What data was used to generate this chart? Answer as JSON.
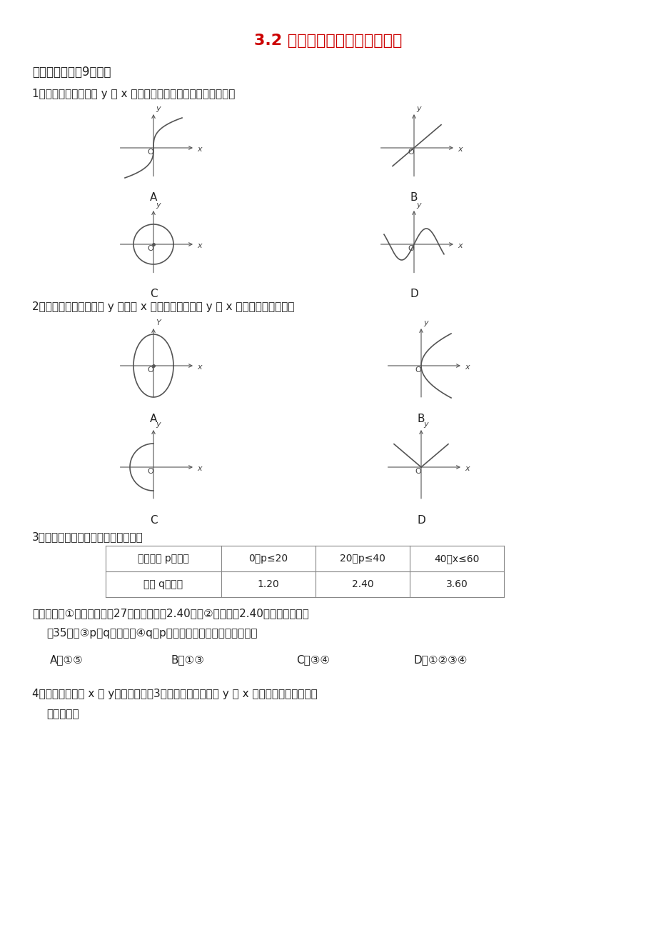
{
  "title": "3.2 用关系式表示的变量间关系",
  "title_color": "#CC0000",
  "bg_color": "#FFFFFF",
  "section1": "一．选择题（兲9小题）",
  "q1": "1．下列曲线所表示的 y 与 x 之间关系不是函数关系的是（　　）",
  "q2": "2．下列曲线反映了变量 y 随变量 x 之间的关系，其中 y 是 x 的函数的是（　　）",
  "q3": "3．在国内投寄平信应付邮资如下表：",
  "table_headers": [
    "信件质量 p（克）",
    "0＜p≤20",
    "20＜p≤40",
    "40＜x≤60"
  ],
  "table_row1": [
    "邮资 q（元）",
    "1.20",
    "2.40",
    "3.60"
  ],
  "q3_text1": "下列表述：①若信件质量为27克，则邮资为2.40元；②若邮资为2.40元，则信件质量",
  "q3_text2": "为35克；③p是q的函数；④q是p的函数，其中正确的是（　　）",
  "q3_options": [
    "A．①⑤",
    "B．①③",
    "C．③④",
    "D．①②③④"
  ],
  "q4": "4．已知两个变量 x 和 y，它们之间的3组对应值如下表，则 y 与 x 之间的函数关系式可能",
  "q4_text2": "是（　　）"
}
